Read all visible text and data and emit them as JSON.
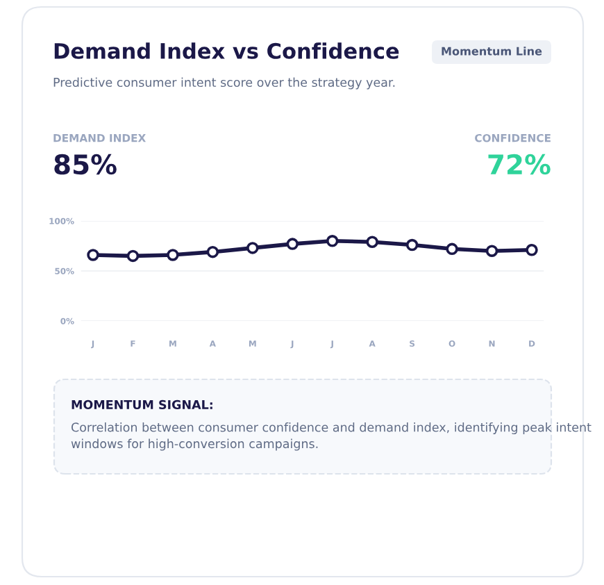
{
  "chart_data": {
    "type": "line",
    "title": "Demand Index vs Confidence",
    "subtitle": "Predictive consumer intent score over the strategy year.",
    "categories": [
      "J",
      "F",
      "M",
      "A",
      "M",
      "J",
      "J",
      "A",
      "S",
      "O",
      "N",
      "D"
    ],
    "series": [
      {
        "color": "#1b1848",
        "values": [
          66,
          65,
          66,
          69,
          73,
          77,
          80,
          79,
          76,
          72,
          70,
          71
        ]
      }
    ],
    "ylim": [
      0,
      100
    ],
    "yticks": [
      {
        "value": 0,
        "label": "0%"
      },
      {
        "value": 50,
        "label": "50%"
      },
      {
        "value": 100,
        "label": "100%"
      }
    ],
    "grid": "y",
    "marker": "circle",
    "line_style": "solid",
    "legend": false,
    "annotations": [
      "Momentum Line",
      "DEMAND INDEX",
      "85%",
      "CONFIDENCE",
      "72%",
      "MOMENTUM SIGNAL:",
      "Correlation between consumer confidence and demand index, identifying peak intent windows for high-conversion campaigns."
    ]
  }
}
